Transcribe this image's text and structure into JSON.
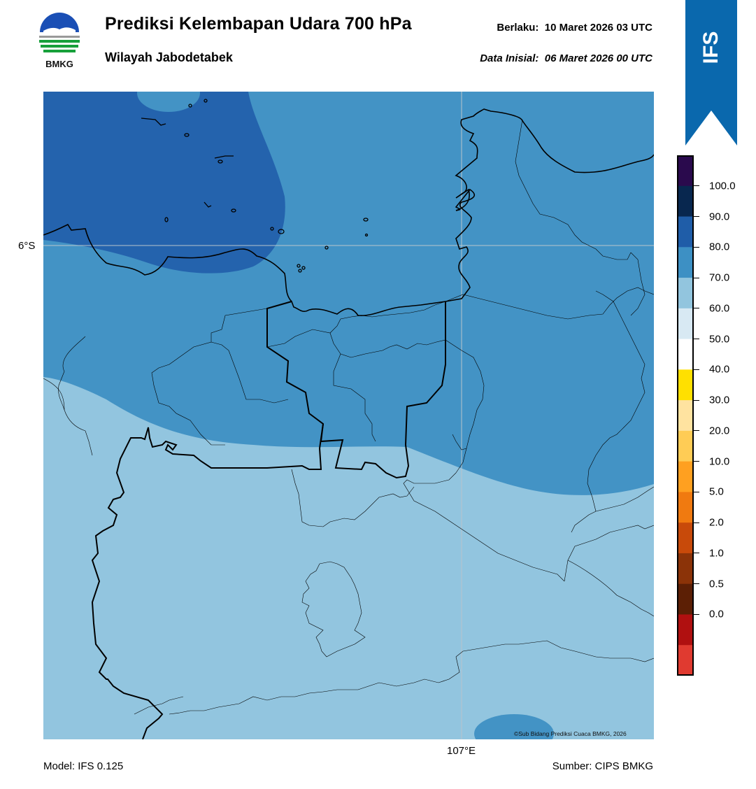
{
  "header": {
    "title": "Prediksi Kelembapan Udara 700 hPa",
    "subtitle": "Wilayah Jabodetabek",
    "valid_label": "Berlaku:",
    "valid_value": "10 Maret 2026 03 UTC",
    "init_label": "Data Inisial:",
    "init_value": "06 Maret 2026 00 UTC"
  },
  "logo": {
    "text": "BMKG",
    "icon": "bmkg-logo"
  },
  "badge": {
    "text": "IFS",
    "color": "#0a68ad"
  },
  "map": {
    "lat_label": "6°S",
    "lon_label": "107°E",
    "credit": "©Sub Bidang Prediksi Cuaca BMKG, 2026"
  },
  "footer": {
    "model": "Model: IFS 0.125",
    "source": "Sumber: CIPS BMKG"
  },
  "colorbar": {
    "tick_labels": [
      "100.0",
      "90.0",
      "80.0",
      "70.0",
      "60.0",
      "50.0",
      "40.0",
      "30.0",
      "20.0",
      "10.0",
      "5.0",
      "2.0",
      "1.0",
      "0.5",
      "0.0"
    ],
    "bins_top_to_bottom": [
      "#2a0a4d",
      "#08274f",
      "#1f5da8",
      "#3d90c4",
      "#92c5de",
      "#d8e9f3",
      "#ffffff",
      "#ffe000",
      "#ffe3a0",
      "#ffcc55",
      "#ffa020",
      "#f07a10",
      "#c84a0a",
      "#8b3308",
      "#5c1f05",
      "#b01010",
      "#e03a30"
    ]
  },
  "colors": {
    "humidity_80_90": "#2463ad",
    "humidity_70_80": "#4393c5",
    "humidity_60_70": "#92c5df"
  }
}
